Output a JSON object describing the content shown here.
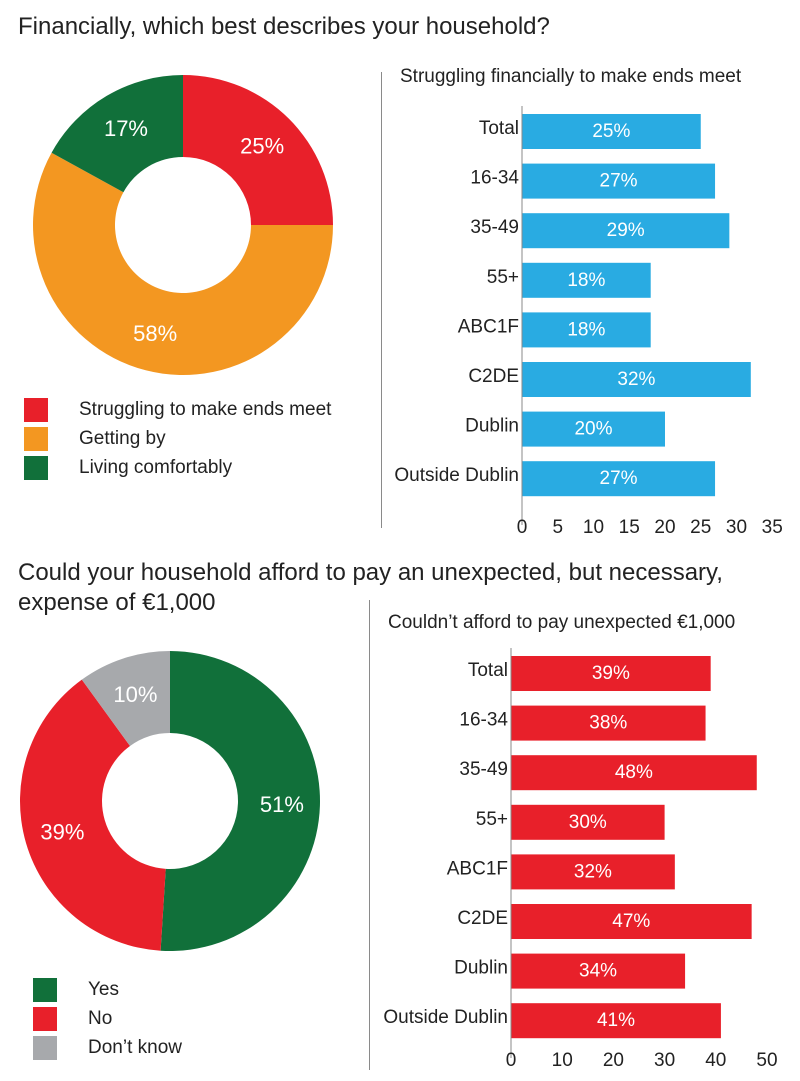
{
  "section1": {
    "title": "Financially, which best describes your household?",
    "bar_title": "Struggling financially to make ends meet"
  },
  "section2": {
    "title_line1": "Could your household afford to pay an unexpected, but necessary,",
    "title_line2": "expense of €1,000",
    "bar_title": "Couldn’t afford to pay unexpected €1,000"
  },
  "chart_data": [
    {
      "type": "pie",
      "title": "Financially, which best describes your household?",
      "donut": true,
      "start_angle_deg": 0,
      "labels": [
        "Struggling to make ends meet",
        "Getting by",
        "Living comfortably"
      ],
      "values": [
        25,
        58,
        17
      ],
      "value_labels": [
        "25%",
        "58%",
        "17%"
      ],
      "colors": [
        "#e8202a",
        "#f39721",
        "#11703a"
      ],
      "legend_position": "bottom-left"
    },
    {
      "type": "bar",
      "orientation": "horizontal",
      "title": "Struggling financially to make ends meet",
      "categories": [
        "Total",
        "16-34",
        "35-49",
        "55+",
        "ABC1F",
        "C2DE",
        "Dublin",
        "Outside Dublin"
      ],
      "values": [
        25,
        27,
        29,
        18,
        18,
        32,
        20,
        27
      ],
      "value_labels": [
        "25%",
        "27%",
        "29%",
        "18%",
        "18%",
        "32%",
        "20%",
        "27%"
      ],
      "xlim": [
        0,
        35
      ],
      "xticks": [
        0,
        5,
        10,
        15,
        20,
        25,
        30,
        35
      ],
      "color": "#29abe2",
      "grid": false
    },
    {
      "type": "pie",
      "title": "Could your household afford to pay an unexpected, but necessary, expense of €1,000",
      "donut": true,
      "start_angle_deg": 0,
      "labels": [
        "Yes",
        "No",
        "Don’t know"
      ],
      "values": [
        51,
        39,
        10
      ],
      "value_labels": [
        "51%",
        "39%",
        "10%"
      ],
      "colors": [
        "#11703a",
        "#e8202a",
        "#a7a9ac"
      ],
      "legend_position": "bottom-left"
    },
    {
      "type": "bar",
      "orientation": "horizontal",
      "title": "Couldn’t afford to pay unexpected €1,000",
      "categories": [
        "Total",
        "16-34",
        "35-49",
        "55+",
        "ABC1F",
        "C2DE",
        "Dublin",
        "Outside Dublin"
      ],
      "values": [
        39,
        38,
        48,
        30,
        32,
        47,
        34,
        41
      ],
      "value_labels": [
        "39%",
        "38%",
        "48%",
        "30%",
        "32%",
        "47%",
        "34%",
        "41%"
      ],
      "xlim": [
        0,
        50
      ],
      "xticks": [
        0,
        10,
        20,
        30,
        40,
        50
      ],
      "color": "#e8202a",
      "grid": false
    }
  ]
}
